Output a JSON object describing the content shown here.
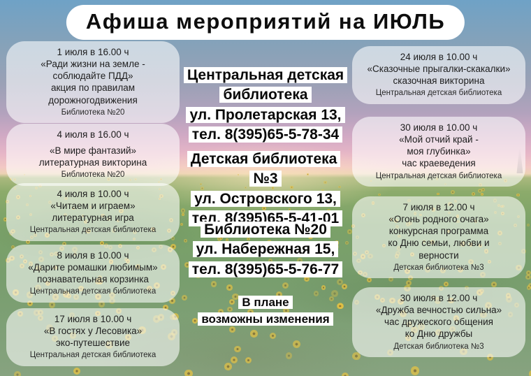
{
  "title": "Афиша мероприятий на ИЮЛЬ",
  "left_events": [
    {
      "when": "1 июля в 16.00 ч",
      "what": "«Ради жизни на земле -\nсоблюдайте ПДД»",
      "desc": "акция по правилам\nдорожногодвижения",
      "library": "Библиотека №20"
    },
    {
      "when": "4 июля в 16.00 ч",
      "what": "«В мире фантазий»",
      "desc": "литературная викторина",
      "library": "Библиотека №20"
    },
    {
      "when": "4 июля в 10.00 ч",
      "what": "«Читаем и играем»",
      "desc": "литературная игра",
      "library": "Центральная детская библиотека"
    },
    {
      "when": "8 июля в 10.00 ч",
      "what": "«Дарите ромашки любимым»",
      "desc": "познавательная корзинка",
      "library": "Центральная детская библиотека"
    },
    {
      "when": "17 июля в 10.00 ч",
      "what": "«В гостях у Лесовика»",
      "desc": "эко-путешествие",
      "library": "Центральная детская библиотека"
    }
  ],
  "right_events": [
    {
      "when": "24 июля в 10.00 ч",
      "what": "«Сказочные прыгалки-скакалки»",
      "desc": "сказочная викторина",
      "library": "Центральная детская библиотека"
    },
    {
      "when": "30 июля в 10.00 ч",
      "what": "«Мой отчий край -\nмоя глубинка»",
      "desc": "час краеведения",
      "library": "Центральная детская библиотека"
    },
    {
      "when": "7 июля в 12.00 ч",
      "what": "«Огонь родного очага»",
      "desc": "конкурсная программа\nко Дню семьи, любви и\nверности",
      "library": "Детская библиотека №3"
    },
    {
      "when": "30 июля в 12.00 ч",
      "what": "«Дружба вечностью сильна»",
      "desc": "час дружеского общения\nко Дню дружбы",
      "library": "Детская библиотека №3"
    }
  ],
  "contacts": [
    {
      "name": "Центральная детская\nбиблиотека",
      "address": "ул. Пролетарская 13,",
      "phone": "тел. 8(395)65-5-78-34"
    },
    {
      "name": "Детская библиотека №3",
      "address": "ул. Островского 13,",
      "phone": "тел. 8(395)65-5-41-01"
    },
    {
      "name": "Библиотека №20",
      "address": "ул. Набережная 15,",
      "phone": "тел. 8(395)65-5-76-77"
    }
  ],
  "note": "В плане\nвозможны изменения",
  "colors": {
    "sky_top": "#6fa2c6",
    "sunset_pink": "#f2c8c4",
    "field_green": "#7aa168",
    "sunflower_yellow": "#e6c243",
    "card_background": "rgba(255,255,255,0.58)",
    "highlight": "#ffffff",
    "text": "#1e1e1e"
  }
}
